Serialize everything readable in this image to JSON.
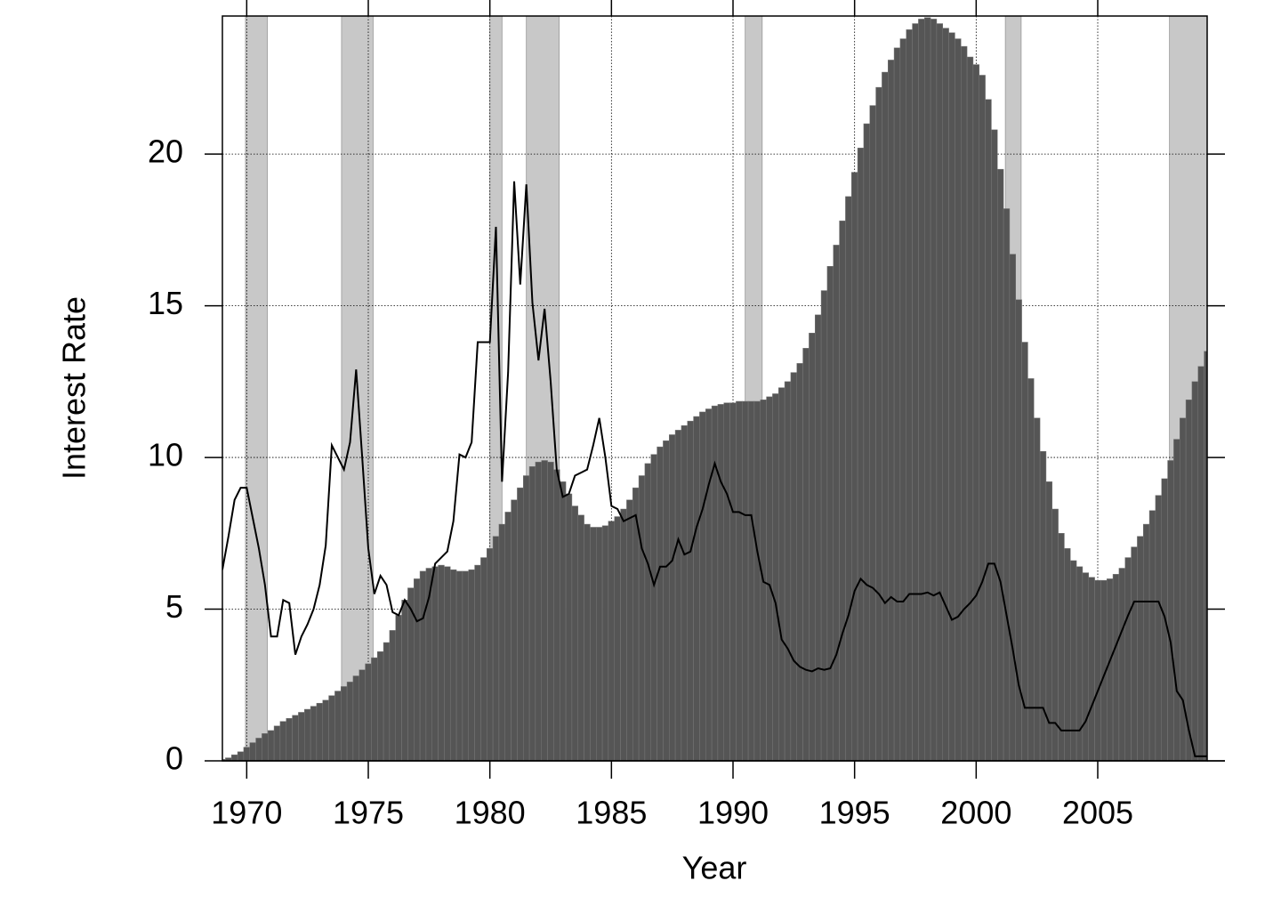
{
  "chart_data": {
    "type": "bar",
    "xlabel": "Year",
    "ylabel": "Interest Rate",
    "xlim": [
      1969,
      2009.5
    ],
    "ylim": [
      0,
      24.55
    ],
    "xticks": [
      1970,
      1975,
      1980,
      1985,
      1990,
      1995,
      2000,
      2005
    ],
    "yticks": [
      0,
      5,
      10,
      15,
      20
    ],
    "grid": true,
    "shade_color": "#c8c8c8",
    "shaded_periods": [
      [
        1969.95,
        1970.85
      ],
      [
        1973.9,
        1975.2
      ],
      [
        1980.0,
        1980.5
      ],
      [
        1981.5,
        1982.85
      ],
      [
        1990.5,
        1991.2
      ],
      [
        2001.2,
        2001.85
      ],
      [
        2007.95,
        2009.5
      ]
    ],
    "x": [
      1969,
      1969.25,
      1969.5,
      1969.75,
      1970,
      1970.25,
      1970.5,
      1970.75,
      1971,
      1971.25,
      1971.5,
      1971.75,
      1972,
      1972.25,
      1972.5,
      1972.75,
      1973,
      1973.25,
      1973.5,
      1973.75,
      1974,
      1974.25,
      1974.5,
      1974.75,
      1975,
      1975.25,
      1975.5,
      1975.75,
      1976,
      1976.25,
      1976.5,
      1976.75,
      1977,
      1977.25,
      1977.5,
      1977.75,
      1978,
      1978.25,
      1978.5,
      1978.75,
      1979,
      1979.25,
      1979.5,
      1979.75,
      1980,
      1980.25,
      1980.5,
      1980.75,
      1981,
      1981.25,
      1981.5,
      1981.75,
      1982,
      1982.25,
      1982.5,
      1982.75,
      1983,
      1983.25,
      1983.5,
      1983.75,
      1984,
      1984.25,
      1984.5,
      1984.75,
      1985,
      1985.25,
      1985.5,
      1985.75,
      1986,
      1986.25,
      1986.5,
      1986.75,
      1987,
      1987.25,
      1987.5,
      1987.75,
      1988,
      1988.25,
      1988.5,
      1988.75,
      1989,
      1989.25,
      1989.5,
      1989.75,
      1990,
      1990.25,
      1990.5,
      1990.75,
      1991,
      1991.25,
      1991.5,
      1991.75,
      1992,
      1992.25,
      1992.5,
      1992.75,
      1993,
      1993.25,
      1993.5,
      1993.75,
      1994,
      1994.25,
      1994.5,
      1994.75,
      1995,
      1995.25,
      1995.5,
      1995.75,
      1996,
      1996.25,
      1996.5,
      1996.75,
      1997,
      1997.25,
      1997.5,
      1997.75,
      1998,
      1998.25,
      1998.5,
      1998.75,
      1999,
      1999.25,
      1999.5,
      1999.75,
      2000,
      2000.25,
      2000.5,
      2000.75,
      2001,
      2001.25,
      2001.5,
      2001.75,
      2002,
      2002.25,
      2002.5,
      2002.75,
      2003,
      2003.25,
      2003.5,
      2003.75,
      2004,
      2004.25,
      2004.5,
      2004.75,
      2005,
      2005.25,
      2005.5,
      2005.75,
      2006,
      2006.25,
      2006.5,
      2006.75,
      2007,
      2007.25,
      2007.5,
      2007.75,
      2008,
      2008.25,
      2008.5,
      2008.75,
      2009,
      2009.25,
      2009.5
    ],
    "series": [
      {
        "type": "bar",
        "color": "#555555",
        "values": [
          0.05,
          0.1,
          0.2,
          0.3,
          0.45,
          0.6,
          0.75,
          0.9,
          1.0,
          1.15,
          1.3,
          1.4,
          1.5,
          1.6,
          1.7,
          1.8,
          1.9,
          2.0,
          2.15,
          2.3,
          2.45,
          2.6,
          2.8,
          3.0,
          3.2,
          3.4,
          3.6,
          3.9,
          4.3,
          4.8,
          5.3,
          5.7,
          6.0,
          6.25,
          6.35,
          6.4,
          6.45,
          6.4,
          6.3,
          6.25,
          6.25,
          6.3,
          6.45,
          6.7,
          7.0,
          7.4,
          7.8,
          8.2,
          8.6,
          9.0,
          9.4,
          9.7,
          9.85,
          9.9,
          9.85,
          9.6,
          9.2,
          8.8,
          8.4,
          8.1,
          7.8,
          7.7,
          7.7,
          7.75,
          7.9,
          8.05,
          8.3,
          8.6,
          9.0,
          9.4,
          9.8,
          10.1,
          10.35,
          10.55,
          10.75,
          10.9,
          11.05,
          11.2,
          11.35,
          11.5,
          11.6,
          11.7,
          11.75,
          11.8,
          11.8,
          11.85,
          11.85,
          11.85,
          11.85,
          11.9,
          12.0,
          12.1,
          12.3,
          12.5,
          12.8,
          13.1,
          13.6,
          14.1,
          14.7,
          15.5,
          16.3,
          17.0,
          17.8,
          18.6,
          19.4,
          20.2,
          21.0,
          21.6,
          22.2,
          22.7,
          23.1,
          23.5,
          23.8,
          24.1,
          24.3,
          24.45,
          24.5,
          24.45,
          24.3,
          24.15,
          24.0,
          23.8,
          23.55,
          23.2,
          22.95,
          22.6,
          21.8,
          20.8,
          19.5,
          18.2,
          16.7,
          15.2,
          13.8,
          12.6,
          11.3,
          10.2,
          9.2,
          8.3,
          7.5,
          7.0,
          6.6,
          6.4,
          6.2,
          6.05,
          5.95,
          5.95,
          6.0,
          6.15,
          6.35,
          6.7,
          7.05,
          7.4,
          7.8,
          8.25,
          8.75,
          9.3,
          9.9,
          10.6,
          11.3,
          11.9,
          12.5,
          13.0,
          13.5
        ]
      },
      {
        "type": "line",
        "color": "#000000",
        "values": [
          6.3,
          7.4,
          8.6,
          9.0,
          9.0,
          8.0,
          7.0,
          5.8,
          4.1,
          4.1,
          5.3,
          5.2,
          3.5,
          4.1,
          4.5,
          5.0,
          5.8,
          7.1,
          10.4,
          10.0,
          9.6,
          10.5,
          12.9,
          10.0,
          7.0,
          5.5,
          6.1,
          5.8,
          4.9,
          4.8,
          5.3,
          5.0,
          4.6,
          4.7,
          5.4,
          6.5,
          6.7,
          6.9,
          7.9,
          10.1,
          10.0,
          10.5,
          13.8,
          13.8,
          13.8,
          17.6,
          9.2,
          12.8,
          19.1,
          15.7,
          19.0,
          15.1,
          13.2,
          14.9,
          12.5,
          9.6,
          8.7,
          8.8,
          9.4,
          9.5,
          9.6,
          10.4,
          11.3,
          10.0,
          8.4,
          8.3,
          7.9,
          8.0,
          8.1,
          7.0,
          6.5,
          5.8,
          6.4,
          6.4,
          6.6,
          7.3,
          6.8,
          6.9,
          7.7,
          8.3,
          9.1,
          9.8,
          9.2,
          8.8,
          8.2,
          8.2,
          8.1,
          8.1,
          6.9,
          5.9,
          5.8,
          5.2,
          4.0,
          3.7,
          3.3,
          3.1,
          3.0,
          2.95,
          3.05,
          3.0,
          3.05,
          3.5,
          4.2,
          4.8,
          5.6,
          6.0,
          5.8,
          5.7,
          5.5,
          5.2,
          5.4,
          5.25,
          5.25,
          5.5,
          5.5,
          5.5,
          5.55,
          5.45,
          5.55,
          5.1,
          4.65,
          4.75,
          5.0,
          5.2,
          5.45,
          5.9,
          6.5,
          6.5,
          5.9,
          4.8,
          3.7,
          2.5,
          1.75,
          1.75,
          1.75,
          1.75,
          1.25,
          1.25,
          1.0,
          1.0,
          1.0,
          1.0,
          1.3,
          1.8,
          2.3,
          2.8,
          3.3,
          3.8,
          4.3,
          4.8,
          5.25,
          5.25,
          5.25,
          5.25,
          5.25,
          4.75,
          3.9,
          2.3,
          2.0,
          1.0,
          0.15,
          0.15,
          0.15
        ]
      }
    ]
  }
}
